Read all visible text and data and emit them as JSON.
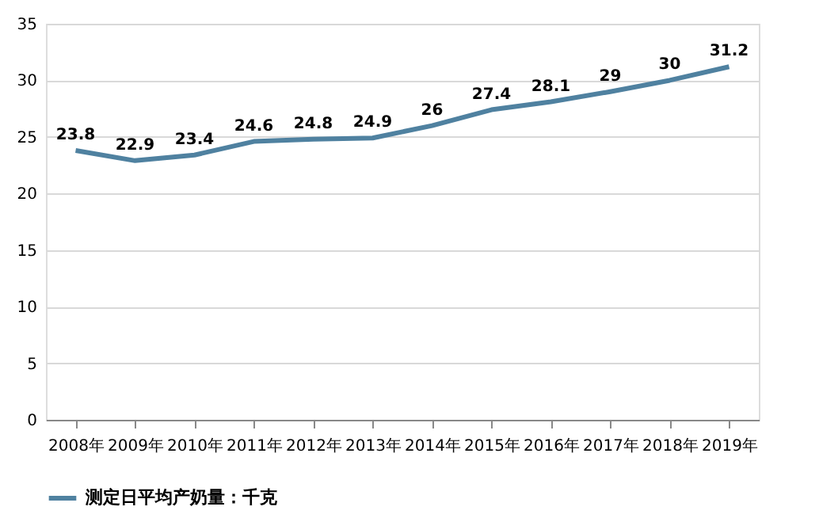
{
  "chart_data": {
    "type": "line",
    "categories": [
      "2008年",
      "2009年",
      "2010年",
      "2011年",
      "2012年",
      "2013年",
      "2014年",
      "2015年",
      "2016年",
      "2017年",
      "2018年",
      "2019年"
    ],
    "series": [
      {
        "name": "测定日平均产奶量：千克",
        "color": "#4f81a0",
        "values": [
          23.8,
          22.9,
          23.4,
          24.6,
          24.8,
          24.9,
          26,
          27.4,
          28.1,
          29,
          30,
          31.2
        ]
      }
    ],
    "ylim": [
      0,
      35
    ],
    "yticks": [
      0,
      5,
      10,
      15,
      20,
      25,
      30,
      35
    ],
    "grid": "y",
    "legend": "bottom",
    "data_labels": true,
    "marker": "none",
    "line_style": "solid"
  }
}
